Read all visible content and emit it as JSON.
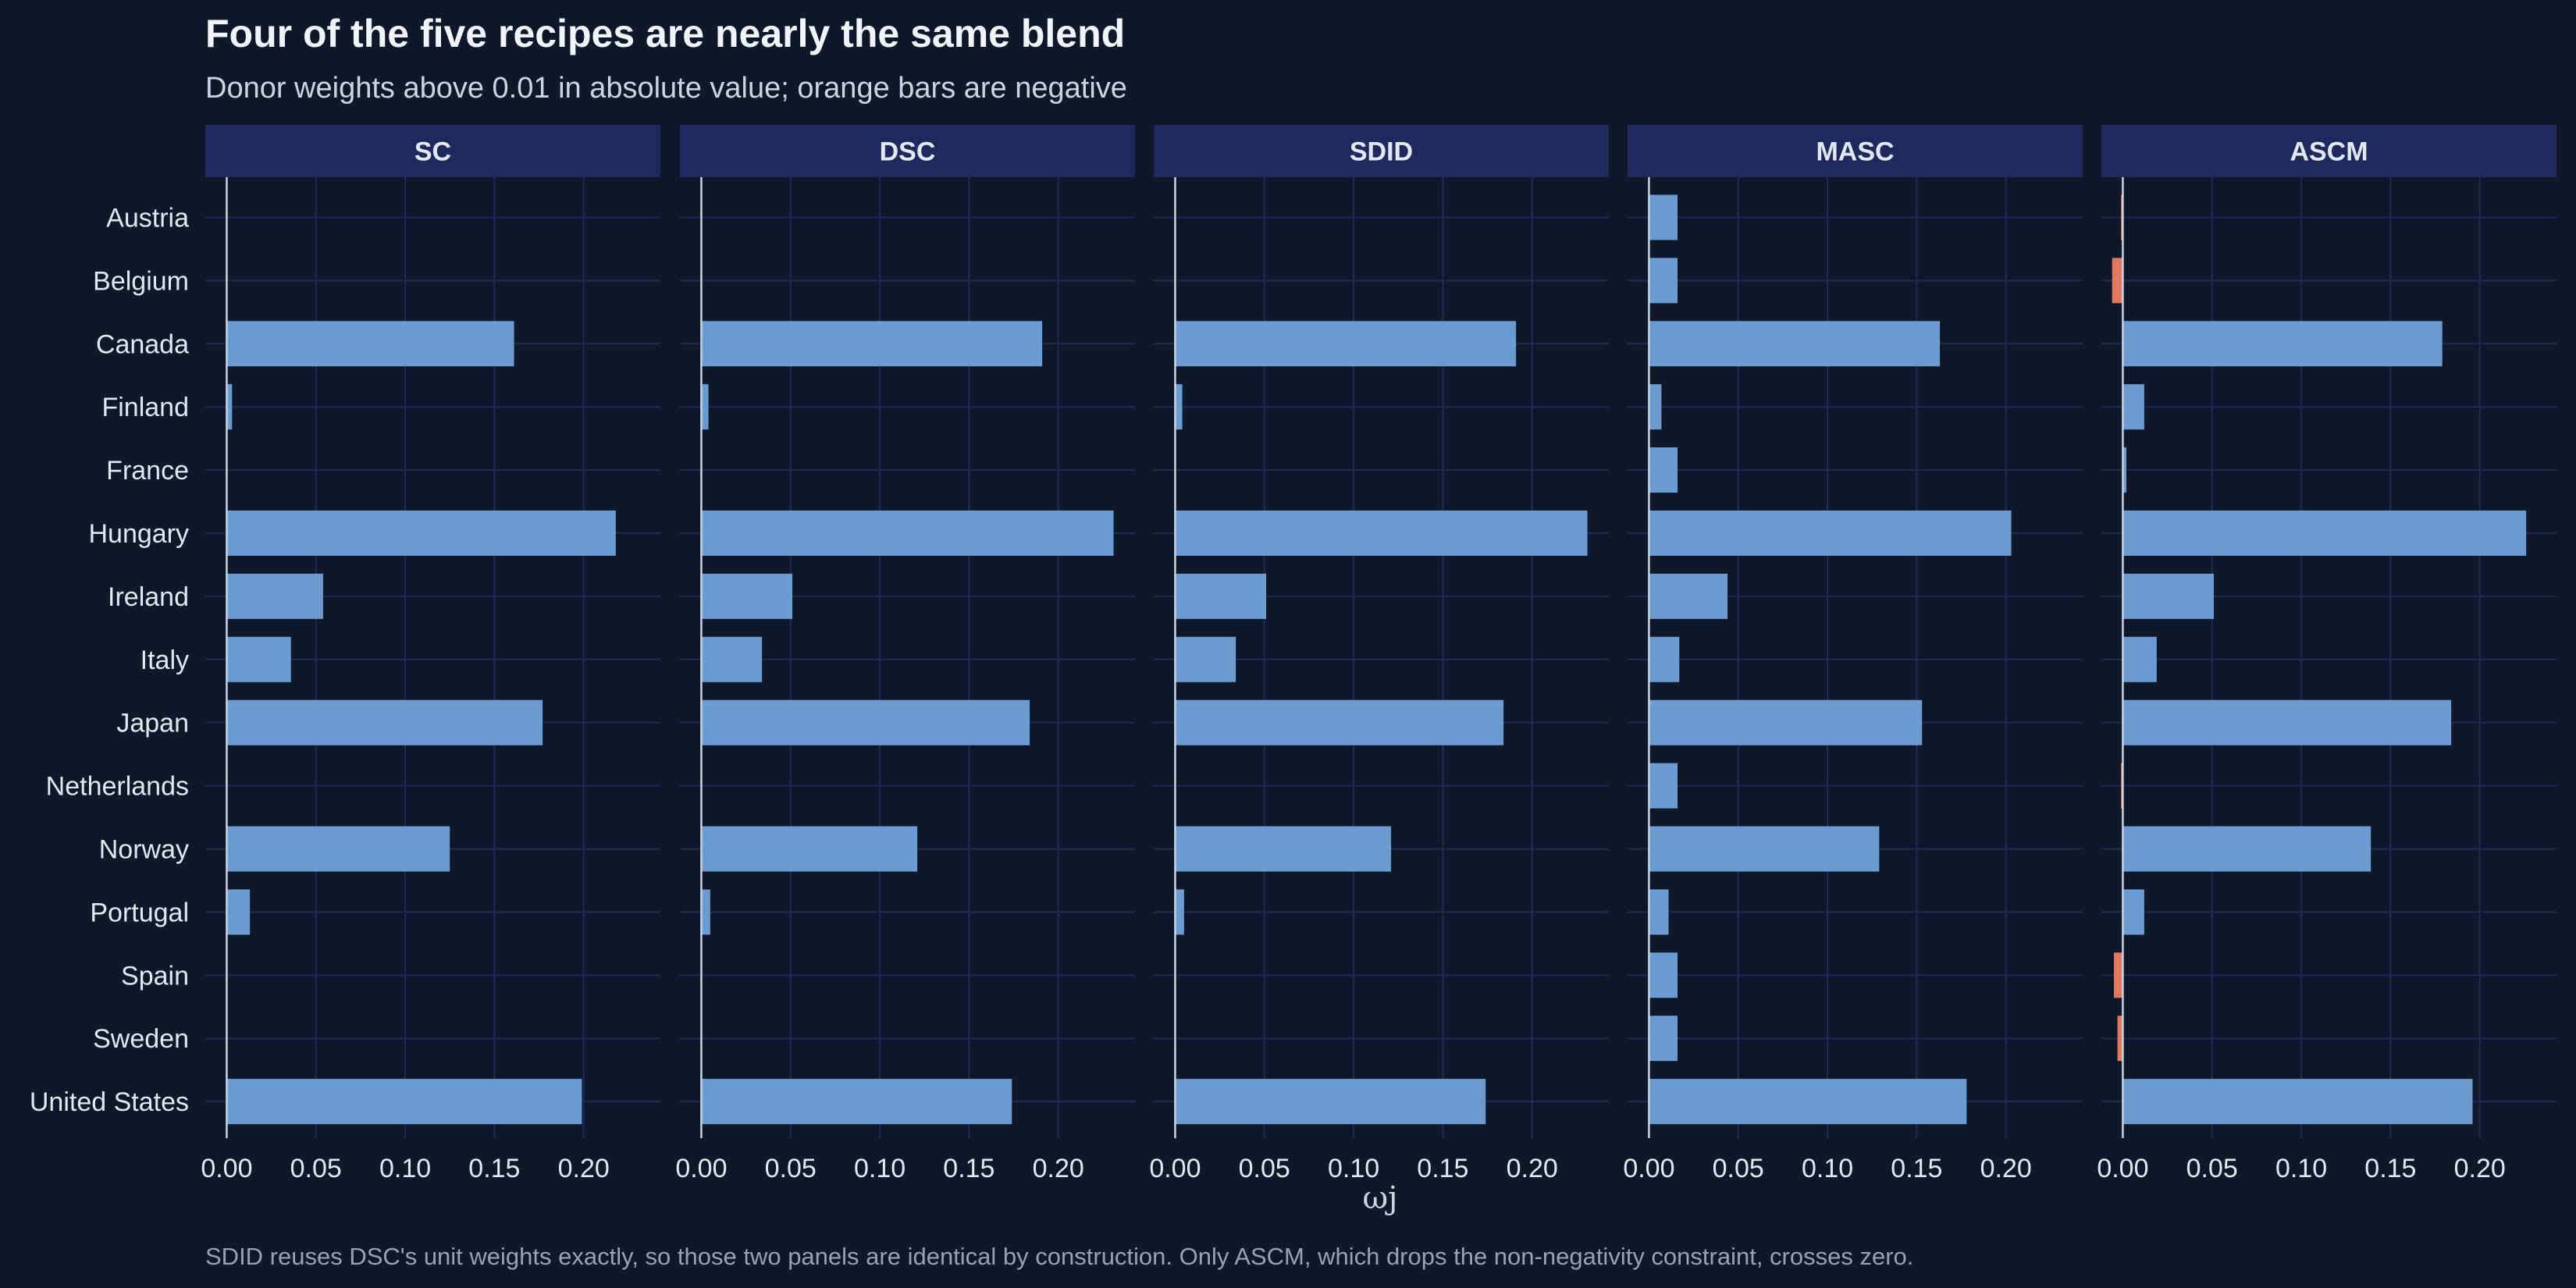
{
  "chart_data": {
    "type": "bar",
    "orientation": "horizontal",
    "title": "Four of the five recipes are nearly the same blend",
    "subtitle": "Donor weights above 0.01 in absolute value; orange bars are negative",
    "xlabel": "ωj",
    "ylabel": "",
    "caption": "SDID reuses DSC's unit weights exactly, so those two panels are identical by construction. Only ASCM, which drops the non-negativity constraint, crosses zero.",
    "xlim": [
      -0.012,
      0.243
    ],
    "x_ticks": [
      "0.00",
      "0.05",
      "0.10",
      "0.15",
      "0.20"
    ],
    "x_tick_values": [
      0,
      0.05,
      0.1,
      0.15,
      0.2
    ],
    "grid": true,
    "legend": "none",
    "colors": {
      "positive": "#6b9bd1",
      "negative": "#e07a5f"
    },
    "categories": [
      "Austria",
      "Belgium",
      "Canada",
      "Finland",
      "France",
      "Hungary",
      "Ireland",
      "Italy",
      "Japan",
      "Netherlands",
      "Norway",
      "Portugal",
      "Spain",
      "Sweden",
      "United States"
    ],
    "series": [
      {
        "name": "SC",
        "values": [
          0,
          0,
          0.161,
          0.003,
          0,
          0.218,
          0.054,
          0.036,
          0.177,
          0,
          0.125,
          0.013,
          0,
          0,
          0.199
        ]
      },
      {
        "name": "DSC",
        "values": [
          0,
          0,
          0.191,
          0.004,
          0,
          0.231,
          0.051,
          0.034,
          0.184,
          0,
          0.121,
          0.005,
          0,
          0,
          0.174
        ]
      },
      {
        "name": "SDID",
        "values": [
          0,
          0,
          0.191,
          0.004,
          0,
          0.231,
          0.051,
          0.034,
          0.184,
          0,
          0.121,
          0.005,
          0,
          0,
          0.174
        ]
      },
      {
        "name": "MASC",
        "values": [
          0.016,
          0.016,
          0.163,
          0.007,
          0.016,
          0.203,
          0.044,
          0.017,
          0.153,
          0.016,
          0.129,
          0.011,
          0.016,
          0.016,
          0.178
        ]
      },
      {
        "name": "ASCM",
        "values": [
          -0.001,
          -0.006,
          0.179,
          0.012,
          0.002,
          0.226,
          0.051,
          0.019,
          0.184,
          -0.001,
          0.139,
          0.012,
          -0.005,
          -0.003,
          0.196
        ]
      }
    ]
  }
}
